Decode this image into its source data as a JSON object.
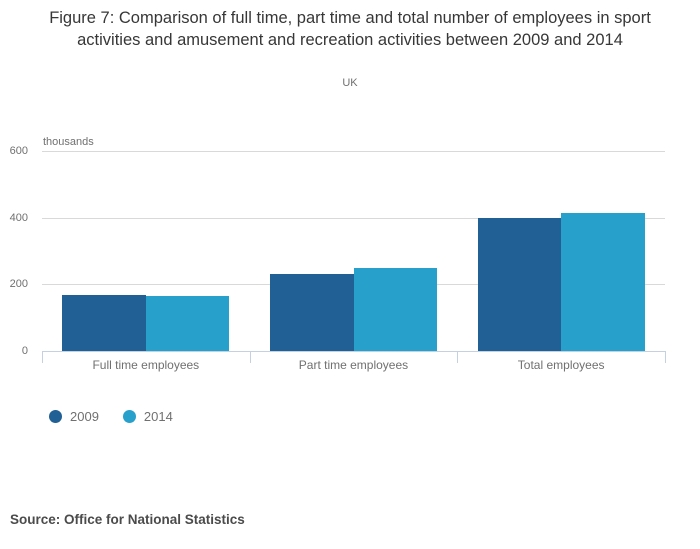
{
  "figure": {
    "title": "Figure 7: Comparison of full time, part time and total number of employees in sport activities and amusement and recreation activities between 2009 and 2014",
    "subtitle": "UK",
    "unit_label": "thousands",
    "source": "Source: Office for National Statistics"
  },
  "colors": {
    "series_2009": "#206095",
    "series_2014": "#27a0cc",
    "gridline": "#d9d9d9",
    "axis": "#c5d1e1",
    "muted_text": "#707070",
    "title_text": "#373737"
  },
  "chart_data": {
    "type": "bar",
    "categories": [
      "Full time employees",
      "Part time employees",
      "Total employees"
    ],
    "series": [
      {
        "name": "2009",
        "color": "#206095",
        "values": [
          168,
          230,
          398
        ]
      },
      {
        "name": "2014",
        "color": "#27a0cc",
        "values": [
          165,
          250,
          415
        ]
      }
    ],
    "title": "Figure 7: Comparison of full time, part time and total number of employees in sport activities and amusement and recreation activities between 2009 and 2014",
    "subtitle": "UK",
    "xlabel": "",
    "ylabel": "thousands",
    "yticks": [
      0,
      200,
      400,
      600
    ],
    "ylim": [
      0,
      600
    ],
    "grid": true,
    "legend_position": "bottom-left"
  }
}
